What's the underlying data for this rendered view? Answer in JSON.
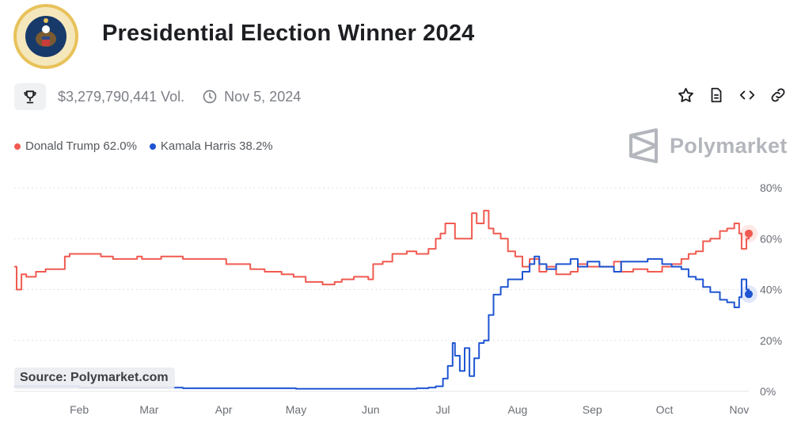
{
  "header": {
    "title": "Presidential Election Winner 2024",
    "volume": "$3,279,790,441 Vol.",
    "date": "Nov 5, 2024",
    "seal_text": "SEAL OF THE PRESIDENT OF THE UNITED STATES"
  },
  "actions": [
    {
      "icon": "star-icon"
    },
    {
      "icon": "document-icon"
    },
    {
      "icon": "embed-code-icon"
    },
    {
      "icon": "link-icon"
    }
  ],
  "legend": [
    {
      "label": "Donald Trump 62.0%",
      "color": "#f05a50"
    },
    {
      "label": "Kamala Harris 38.2%",
      "color": "#1f55d2"
    }
  ],
  "brand": "Polymarket",
  "source": "Source: Polymarket.com",
  "chart_data": {
    "type": "line",
    "x_unit": "date (2024)",
    "xlim": [
      "2024-01-05",
      "2024-11-05"
    ],
    "ylim": [
      0,
      80
    ],
    "yticks": [
      0,
      20,
      40,
      60,
      80
    ],
    "ytick_labels": [
      "0%",
      "20%",
      "40%",
      "60%",
      "80%"
    ],
    "xtick_labels": [
      {
        "label": "Feb",
        "date": "2024-02-01"
      },
      {
        "label": "Mar",
        "date": "2024-03-01"
      },
      {
        "label": "Apr",
        "date": "2024-04-01"
      },
      {
        "label": "May",
        "date": "2024-05-01"
      },
      {
        "label": "Jun",
        "date": "2024-06-01"
      },
      {
        "label": "Jul",
        "date": "2024-07-01"
      },
      {
        "label": "Aug",
        "date": "2024-08-01"
      },
      {
        "label": "Sep",
        "date": "2024-09-01"
      },
      {
        "label": "Oct",
        "date": "2024-10-01"
      },
      {
        "label": "Nov",
        "date": "2024-11-01"
      }
    ],
    "grid": "horizontal dotted",
    "series": [
      {
        "color": "#f05a50",
        "points": [
          [
            "2024-01-05",
            49
          ],
          [
            "2024-01-06",
            40
          ],
          [
            "2024-01-07",
            40
          ],
          [
            "2024-01-08",
            46
          ],
          [
            "2024-01-10",
            45
          ],
          [
            "2024-01-14",
            47
          ],
          [
            "2024-01-18",
            48
          ],
          [
            "2024-01-24",
            48
          ],
          [
            "2024-01-26",
            53
          ],
          [
            "2024-01-28",
            54
          ],
          [
            "2024-02-02",
            54
          ],
          [
            "2024-02-09",
            54
          ],
          [
            "2024-02-10",
            53
          ],
          [
            "2024-02-15",
            52
          ],
          [
            "2024-02-20",
            52
          ],
          [
            "2024-02-25",
            53
          ],
          [
            "2024-02-27",
            52
          ],
          [
            "2024-03-01",
            52
          ],
          [
            "2024-03-06",
            53
          ],
          [
            "2024-03-12",
            53
          ],
          [
            "2024-03-15",
            52
          ],
          [
            "2024-03-20",
            52
          ],
          [
            "2024-03-27",
            52
          ],
          [
            "2024-04-02",
            50
          ],
          [
            "2024-04-08",
            50
          ],
          [
            "2024-04-12",
            48
          ],
          [
            "2024-04-18",
            47
          ],
          [
            "2024-04-25",
            46
          ],
          [
            "2024-04-30",
            45
          ],
          [
            "2024-05-05",
            43
          ],
          [
            "2024-05-12",
            42
          ],
          [
            "2024-05-17",
            43
          ],
          [
            "2024-05-20",
            44
          ],
          [
            "2024-05-25",
            45
          ],
          [
            "2024-05-31",
            44
          ],
          [
            "2024-06-02",
            50
          ],
          [
            "2024-06-06",
            51
          ],
          [
            "2024-06-10",
            54
          ],
          [
            "2024-06-16",
            55
          ],
          [
            "2024-06-20",
            54
          ],
          [
            "2024-06-25",
            56
          ],
          [
            "2024-06-27",
            56
          ],
          [
            "2024-06-28",
            60
          ],
          [
            "2024-06-30",
            62
          ],
          [
            "2024-07-02",
            66
          ],
          [
            "2024-07-06",
            60
          ],
          [
            "2024-07-10",
            60
          ],
          [
            "2024-07-13",
            70
          ],
          [
            "2024-07-15",
            66
          ],
          [
            "2024-07-18",
            71
          ],
          [
            "2024-07-20",
            64
          ],
          [
            "2024-07-22",
            62
          ],
          [
            "2024-07-25",
            60
          ],
          [
            "2024-07-28",
            55
          ],
          [
            "2024-07-31",
            53
          ],
          [
            "2024-08-03",
            49
          ],
          [
            "2024-08-06",
            52
          ],
          [
            "2024-08-10",
            47
          ],
          [
            "2024-08-13",
            49
          ],
          [
            "2024-08-17",
            46
          ],
          [
            "2024-08-23",
            47
          ],
          [
            "2024-08-26",
            50
          ],
          [
            "2024-08-30",
            49
          ],
          [
            "2024-09-04",
            49
          ],
          [
            "2024-09-10",
            51
          ],
          [
            "2024-09-13",
            47
          ],
          [
            "2024-09-18",
            48
          ],
          [
            "2024-09-24",
            47
          ],
          [
            "2024-09-30",
            49
          ],
          [
            "2024-10-04",
            50
          ],
          [
            "2024-10-08",
            52
          ],
          [
            "2024-10-11",
            54
          ],
          [
            "2024-10-14",
            55
          ],
          [
            "2024-10-17",
            59
          ],
          [
            "2024-10-20",
            60
          ],
          [
            "2024-10-24",
            63
          ],
          [
            "2024-10-27",
            64
          ],
          [
            "2024-10-30",
            66
          ],
          [
            "2024-11-01",
            62
          ],
          [
            "2024-11-02",
            56
          ],
          [
            "2024-11-04",
            60
          ],
          [
            "2024-11-05",
            62
          ]
        ]
      },
      {
        "color": "#1f55d2",
        "points": [
          [
            "2024-01-05",
            2
          ],
          [
            "2024-01-20",
            2
          ],
          [
            "2024-02-01",
            1.5
          ],
          [
            "2024-03-01",
            1.5
          ],
          [
            "2024-03-15",
            1.2
          ],
          [
            "2024-04-01",
            1.2
          ],
          [
            "2024-05-01",
            1
          ],
          [
            "2024-06-01",
            1
          ],
          [
            "2024-06-20",
            1.2
          ],
          [
            "2024-06-25",
            1.5
          ],
          [
            "2024-06-28",
            2
          ],
          [
            "2024-07-01",
            5
          ],
          [
            "2024-07-03",
            10
          ],
          [
            "2024-07-05",
            19
          ],
          [
            "2024-07-06",
            14
          ],
          [
            "2024-07-08",
            8
          ],
          [
            "2024-07-10",
            17
          ],
          [
            "2024-07-12",
            6
          ],
          [
            "2024-07-14",
            13
          ],
          [
            "2024-07-16",
            19
          ],
          [
            "2024-07-18",
            20
          ],
          [
            "2024-07-20",
            30
          ],
          [
            "2024-07-22",
            38
          ],
          [
            "2024-07-25",
            41
          ],
          [
            "2024-07-28",
            44
          ],
          [
            "2024-07-31",
            44
          ],
          [
            "2024-08-03",
            47
          ],
          [
            "2024-08-06",
            50
          ],
          [
            "2024-08-08",
            53
          ],
          [
            "2024-08-10",
            50
          ],
          [
            "2024-08-13",
            48
          ],
          [
            "2024-08-17",
            50
          ],
          [
            "2024-08-23",
            52
          ],
          [
            "2024-08-26",
            49
          ],
          [
            "2024-08-30",
            51
          ],
          [
            "2024-09-04",
            49
          ],
          [
            "2024-09-10",
            47
          ],
          [
            "2024-09-13",
            51
          ],
          [
            "2024-09-18",
            51
          ],
          [
            "2024-09-24",
            52
          ],
          [
            "2024-09-30",
            50
          ],
          [
            "2024-10-04",
            49
          ],
          [
            "2024-10-08",
            48
          ],
          [
            "2024-10-11",
            45
          ],
          [
            "2024-10-14",
            44
          ],
          [
            "2024-10-17",
            41
          ],
          [
            "2024-10-20",
            39
          ],
          [
            "2024-10-24",
            36
          ],
          [
            "2024-10-27",
            35
          ],
          [
            "2024-10-30",
            33
          ],
          [
            "2024-11-01",
            37
          ],
          [
            "2024-11-02",
            44
          ],
          [
            "2024-11-04",
            40
          ],
          [
            "2024-11-05",
            38.2
          ]
        ]
      }
    ]
  }
}
